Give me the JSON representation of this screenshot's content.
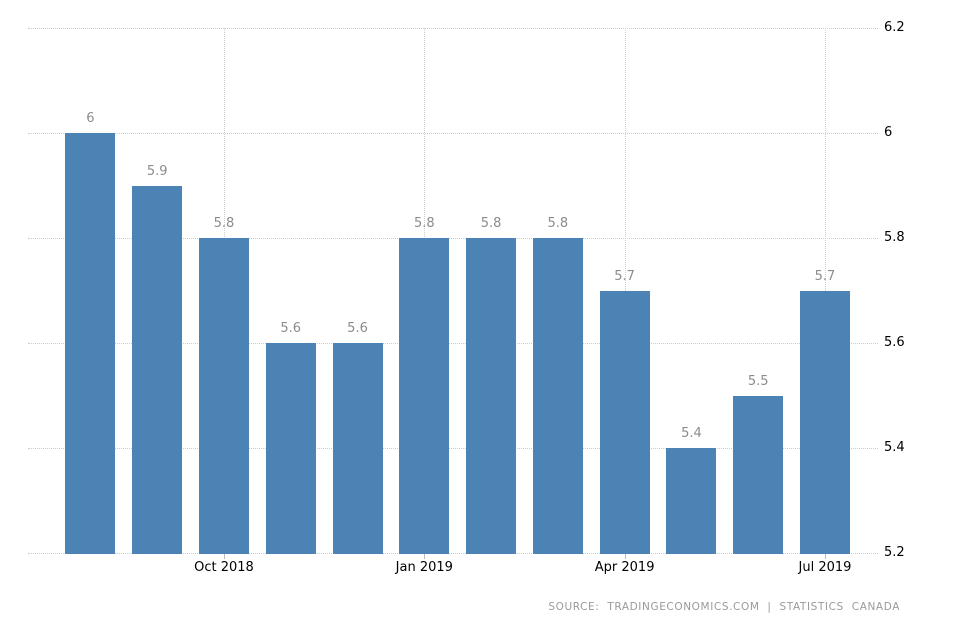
{
  "chart_data": {
    "type": "bar",
    "title": "",
    "xlabel": "",
    "ylabel": "",
    "values": [
      6,
      5.9,
      5.8,
      5.6,
      5.6,
      5.8,
      5.8,
      5.8,
      5.7,
      5.4,
      5.5,
      5.7
    ],
    "bar_labels": [
      "6",
      "5.9",
      "5.8",
      "5.6",
      "5.6",
      "5.8",
      "5.8",
      "5.8",
      "5.7",
      "5.4",
      "5.5",
      "5.7"
    ],
    "x_ticks": [
      {
        "label": "Oct 2018",
        "bar_index": 2
      },
      {
        "label": "Jan 2019",
        "bar_index": 5
      },
      {
        "label": "Apr 2019",
        "bar_index": 8
      },
      {
        "label": "Jul 2019",
        "bar_index": 11
      }
    ],
    "y_ticks": [
      {
        "label": "6.2",
        "value": 6.2
      },
      {
        "label": "6",
        "value": 6.0
      },
      {
        "label": "5.8",
        "value": 5.8
      },
      {
        "label": "5.6",
        "value": 5.6
      },
      {
        "label": "5.4",
        "value": 5.4
      },
      {
        "label": "5.2",
        "value": 5.2
      }
    ],
    "ylim": [
      5.2,
      6.2
    ],
    "grid": true,
    "legend_position": "none",
    "colors": {
      "bar": "#4a83b4",
      "gridline": "#cccccc",
      "bar_value_label": "#8c8c8c",
      "axis_tick_label": "#000000",
      "source_text": "#9a9a9a"
    }
  },
  "footer": {
    "source_text": "SOURCE: TRADINGECONOMICS.COM | STATISTICS CANADA"
  }
}
